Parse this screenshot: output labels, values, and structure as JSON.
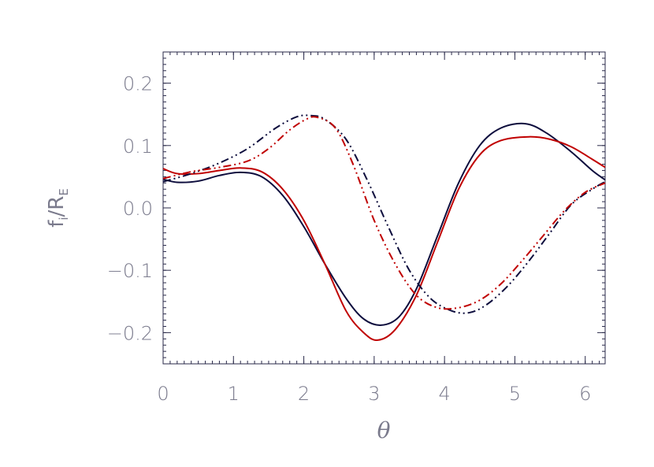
{
  "chart_data": {
    "type": "line",
    "xlabel": "θ",
    "ylabel": {
      "base": "f",
      "sub": "i",
      "sep": "/",
      "base2": "R",
      "sub2": "E"
    },
    "xlim": [
      0,
      6.2832
    ],
    "ylim": [
      -0.25,
      0.25
    ],
    "x_ticks": [
      0,
      1,
      2,
      3,
      4,
      5,
      6
    ],
    "x_tick_labels": [
      "0",
      "1",
      "2",
      "3",
      "4",
      "5",
      "6"
    ],
    "y_ticks": [
      -0.2,
      -0.1,
      0.0,
      0.1,
      0.2
    ],
    "y_tick_labels": [
      "−0.2",
      "−0.1",
      "0.0",
      "0.1",
      "0.2"
    ],
    "grid": false,
    "series": [
      {
        "color": "#0d0d3d",
        "dash": "solid",
        "x": [
          0,
          0.2,
          0.5,
          0.8,
          1.1,
          1.4,
          1.7,
          2.0,
          2.3,
          2.6,
          2.85,
          3.1,
          3.35,
          3.6,
          3.9,
          4.2,
          4.5,
          4.8,
          5.15,
          5.45,
          5.8,
          6.1,
          6.2832
        ],
        "y": [
          0.046,
          0.041,
          0.043,
          0.052,
          0.057,
          0.05,
          0.02,
          -0.03,
          -0.09,
          -0.145,
          -0.178,
          -0.188,
          -0.175,
          -0.13,
          -0.045,
          0.04,
          0.1,
          0.128,
          0.135,
          0.12,
          0.09,
          0.06,
          0.045
        ]
      },
      {
        "color": "#c00000",
        "dash": "solid",
        "x": [
          0,
          0.2,
          0.5,
          0.8,
          1.1,
          1.4,
          1.7,
          2.0,
          2.3,
          2.6,
          2.85,
          3.05,
          3.3,
          3.6,
          3.9,
          4.2,
          4.5,
          4.8,
          5.2,
          5.5,
          5.8,
          6.1,
          6.2832
        ],
        "y": [
          0.063,
          0.055,
          0.055,
          0.06,
          0.064,
          0.058,
          0.03,
          -0.02,
          -0.09,
          -0.165,
          -0.2,
          -0.212,
          -0.195,
          -0.14,
          -0.055,
          0.03,
          0.085,
          0.108,
          0.114,
          0.11,
          0.098,
          0.078,
          0.065
        ]
      },
      {
        "color": "#0d0d3d",
        "dash": "dash-dot-dot",
        "x": [
          0,
          0.4,
          0.8,
          1.2,
          1.6,
          1.9,
          2.1,
          2.3,
          2.6,
          2.9,
          3.2,
          3.5,
          3.8,
          4.1,
          4.35,
          4.6,
          4.9,
          5.2,
          5.5,
          5.8,
          6.1,
          6.2832
        ],
        "y": [
          0.042,
          0.055,
          0.072,
          0.095,
          0.128,
          0.146,
          0.148,
          0.142,
          0.11,
          0.045,
          -0.03,
          -0.1,
          -0.145,
          -0.165,
          -0.168,
          -0.155,
          -0.125,
          -0.085,
          -0.04,
          0.005,
          0.03,
          0.042
        ]
      },
      {
        "color": "#c00000",
        "dash": "dash-dot-dot",
        "x": [
          0,
          0.4,
          0.8,
          1.2,
          1.5,
          1.8,
          2.05,
          2.2,
          2.45,
          2.7,
          3.0,
          3.3,
          3.6,
          3.9,
          4.2,
          4.5,
          4.8,
          5.1,
          5.4,
          5.7,
          6.0,
          6.2832
        ],
        "y": [
          0.047,
          0.058,
          0.065,
          0.075,
          0.095,
          0.125,
          0.143,
          0.145,
          0.128,
          0.07,
          -0.02,
          -0.09,
          -0.14,
          -0.16,
          -0.16,
          -0.148,
          -0.122,
          -0.085,
          -0.045,
          -0.005,
          0.025,
          0.04
        ]
      }
    ]
  }
}
